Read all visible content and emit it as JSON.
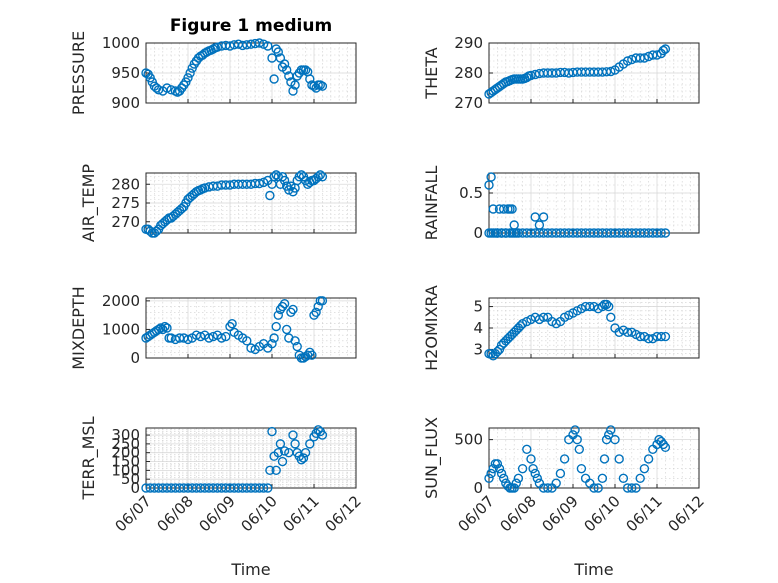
{
  "figure": {
    "title": "Figure 1 medium",
    "xlabel": "Time",
    "xticks": [
      "06/07",
      "06/08",
      "06/09",
      "06/10",
      "06/11",
      "06/12"
    ]
  },
  "colors": {
    "marker": "#0072bd",
    "axis": "#262626",
    "grid": "#d9d9d9"
  },
  "chart_data": [
    {
      "type": "scatter",
      "name": "PRESSURE",
      "ylabel": "PRESSURE",
      "xlim": [
        0,
        5
      ],
      "ylim": [
        900,
        1000
      ],
      "yticks": [
        900,
        950,
        1000
      ],
      "x": [
        0.0,
        0.05,
        0.1,
        0.15,
        0.2,
        0.25,
        0.3,
        0.4,
        0.5,
        0.6,
        0.7,
        0.75,
        0.8,
        0.85,
        0.9,
        0.95,
        1.0,
        1.05,
        1.1,
        1.15,
        1.2,
        1.25,
        1.3,
        1.35,
        1.4,
        1.45,
        1.5,
        1.55,
        1.6,
        1.65,
        1.7,
        1.8,
        1.9,
        2.0,
        2.1,
        2.2,
        2.3,
        2.4,
        2.5,
        2.6,
        2.7,
        2.8,
        2.9,
        3.0,
        3.05,
        3.1,
        3.15,
        3.2,
        3.25,
        3.3,
        3.35,
        3.4,
        3.45,
        3.5,
        3.55,
        3.6,
        3.65,
        3.7,
        3.75,
        3.8,
        3.85,
        3.9,
        3.95,
        4.0,
        4.05,
        4.1,
        4.15,
        4.2
      ],
      "y": [
        950,
        948,
        942,
        935,
        928,
        925,
        922,
        920,
        925,
        922,
        920,
        918,
        920,
        925,
        930,
        935,
        942,
        950,
        958,
        965,
        970,
        975,
        978,
        980,
        983,
        985,
        987,
        988,
        990,
        992,
        993,
        995,
        996,
        995,
        997,
        998,
        996,
        997,
        998,
        999,
        1000,
        998,
        995,
        975,
        940,
        990,
        985,
        975,
        960,
        965,
        955,
        945,
        935,
        920,
        930,
        945,
        950,
        955,
        955,
        955,
        952,
        940,
        930,
        928,
        925,
        930,
        930,
        928
      ]
    },
    {
      "type": "scatter",
      "name": "THETA",
      "ylabel": "THETA",
      "xlim": [
        0,
        5
      ],
      "ylim": [
        270,
        290
      ],
      "yticks": [
        270,
        280,
        290
      ],
      "x": [
        0.0,
        0.05,
        0.1,
        0.15,
        0.2,
        0.25,
        0.3,
        0.35,
        0.4,
        0.45,
        0.5,
        0.55,
        0.6,
        0.65,
        0.7,
        0.75,
        0.8,
        0.85,
        0.9,
        0.95,
        1.0,
        1.1,
        1.2,
        1.3,
        1.4,
        1.5,
        1.6,
        1.7,
        1.8,
        1.9,
        2.0,
        2.1,
        2.2,
        2.3,
        2.4,
        2.5,
        2.6,
        2.7,
        2.8,
        2.9,
        3.0,
        3.1,
        3.2,
        3.3,
        3.4,
        3.5,
        3.6,
        3.7,
        3.8,
        3.9,
        4.0,
        4.1,
        4.15,
        4.2
      ],
      "y": [
        273.0,
        273.5,
        274.0,
        274.5,
        275.0,
        275.5,
        276.0,
        276.5,
        277.0,
        277.2,
        277.5,
        277.8,
        278.0,
        278.0,
        278.0,
        278.0,
        278.0,
        278.2,
        278.5,
        279.0,
        279.2,
        279.5,
        279.8,
        280.0,
        280.0,
        280.0,
        280.0,
        280.2,
        280.2,
        280.0,
        280.2,
        280.3,
        280.3,
        280.3,
        280.3,
        280.3,
        280.3,
        280.3,
        280.4,
        280.5,
        281.0,
        282.0,
        283.0,
        284.0,
        284.5,
        285.0,
        285.0,
        285.0,
        285.5,
        286.0,
        286.0,
        286.5,
        287.5,
        288.0
      ]
    },
    {
      "type": "scatter",
      "name": "AIR_TEMP",
      "ylabel": "AIR_TEMP",
      "xlim": [
        0,
        5
      ],
      "ylim": [
        267,
        283
      ],
      "yticks": [
        270,
        275,
        280
      ],
      "x": [
        0.0,
        0.05,
        0.1,
        0.15,
        0.2,
        0.25,
        0.3,
        0.35,
        0.4,
        0.45,
        0.5,
        0.55,
        0.6,
        0.65,
        0.7,
        0.75,
        0.8,
        0.85,
        0.9,
        0.95,
        1.0,
        1.05,
        1.1,
        1.15,
        1.2,
        1.25,
        1.3,
        1.35,
        1.4,
        1.5,
        1.6,
        1.7,
        1.8,
        1.9,
        2.0,
        2.1,
        2.2,
        2.3,
        2.4,
        2.5,
        2.6,
        2.7,
        2.8,
        2.9,
        2.95,
        3.0,
        3.05,
        3.1,
        3.15,
        3.2,
        3.25,
        3.3,
        3.35,
        3.4,
        3.45,
        3.5,
        3.55,
        3.6,
        3.65,
        3.7,
        3.75,
        3.8,
        3.85,
        3.9,
        3.95,
        4.0,
        4.05,
        4.1,
        4.15,
        4.2
      ],
      "y": [
        268.0,
        268.0,
        267.5,
        267.0,
        267.0,
        267.5,
        268.0,
        269.0,
        269.5,
        270.0,
        270.5,
        271.0,
        271.0,
        271.5,
        272.0,
        272.5,
        273.0,
        273.5,
        274.0,
        275.0,
        276.0,
        276.5,
        277.0,
        277.5,
        278.0,
        278.3,
        278.5,
        278.8,
        279.0,
        279.3,
        279.5,
        279.5,
        279.8,
        279.8,
        279.8,
        280.0,
        280.0,
        280.0,
        280.0,
        280.0,
        280.2,
        280.2,
        280.5,
        281.0,
        277.0,
        280.0,
        282.0,
        282.5,
        282.0,
        280.0,
        282.0,
        281.0,
        279.5,
        278.5,
        279.5,
        278.0,
        279.0,
        281.0,
        282.0,
        282.5,
        282.0,
        281.0,
        280.0,
        280.5,
        281.0,
        281.0,
        281.5,
        282.0,
        282.5,
        282.0
      ]
    },
    {
      "type": "scatter",
      "name": "RAINFALL",
      "ylabel": "RAINFALL",
      "xlim": [
        0,
        5
      ],
      "ylim": [
        0,
        0.75
      ],
      "yticks": [
        0,
        0.5
      ],
      "x": [
        0.0,
        0.05,
        0.1,
        0.15,
        0.2,
        0.25,
        0.3,
        0.35,
        0.4,
        0.45,
        0.5,
        0.55,
        0.6,
        0.65,
        0.7,
        0.8,
        0.9,
        1.0,
        1.1,
        1.2,
        1.3,
        1.4,
        1.5,
        1.6,
        1.7,
        1.8,
        1.9,
        2.0,
        2.1,
        2.2,
        2.3,
        2.4,
        2.5,
        2.6,
        2.7,
        2.8,
        2.9,
        3.0,
        3.1,
        3.2,
        3.3,
        3.4,
        3.5,
        3.6,
        3.7,
        3.8,
        3.9,
        4.0,
        4.1,
        4.2,
        0.0,
        0.05,
        0.1,
        0.2,
        0.3,
        0.4,
        0.5,
        0.55,
        0.6,
        1.1,
        1.2,
        1.3
      ],
      "y": [
        0.6,
        0.7,
        0.3,
        0.0,
        0.0,
        0.3,
        0.0,
        0.3,
        0.0,
        0.3,
        0.3,
        0.3,
        0.1,
        0.0,
        0.0,
        0.0,
        0.0,
        0.0,
        0.0,
        0.0,
        0.0,
        0.0,
        0.0,
        0.0,
        0.0,
        0.0,
        0.0,
        0.0,
        0.0,
        0.0,
        0.0,
        0.0,
        0.0,
        0.0,
        0.0,
        0.0,
        0.0,
        0.0,
        0.0,
        0.0,
        0.0,
        0.0,
        0.0,
        0.0,
        0.0,
        0.0,
        0.0,
        0.0,
        0.0,
        0.0,
        0.0,
        0.0,
        0.0,
        0.0,
        0.0,
        0.0,
        0.0,
        0.0,
        0.0,
        0.2,
        0.1,
        0.2
      ]
    },
    {
      "type": "scatter",
      "name": "MIXDEPTH",
      "ylabel": "MIXDEPTH",
      "xlim": [
        0,
        5
      ],
      "ylim": [
        0,
        2100
      ],
      "yticks": [
        0,
        1000,
        2000
      ],
      "x": [
        0.0,
        0.05,
        0.1,
        0.15,
        0.2,
        0.25,
        0.3,
        0.35,
        0.4,
        0.45,
        0.5,
        0.55,
        0.6,
        0.7,
        0.8,
        0.9,
        1.0,
        1.1,
        1.2,
        1.3,
        1.4,
        1.5,
        1.6,
        1.7,
        1.8,
        1.9,
        2.0,
        2.05,
        2.1,
        2.2,
        2.3,
        2.4,
        2.5,
        2.6,
        2.7,
        2.8,
        2.9,
        3.0,
        3.05,
        3.1,
        3.15,
        3.2,
        3.25,
        3.3,
        3.35,
        3.4,
        3.45,
        3.5,
        3.55,
        3.6,
        3.65,
        3.7,
        3.75,
        3.8,
        3.85,
        3.9,
        3.95,
        4.0,
        4.05,
        4.1,
        4.15,
        4.2
      ],
      "y": [
        700,
        750,
        800,
        850,
        900,
        950,
        1000,
        1050,
        1000,
        1100,
        1050,
        700,
        700,
        650,
        700,
        700,
        650,
        700,
        800,
        750,
        800,
        700,
        750,
        800,
        700,
        750,
        1100,
        1200,
        900,
        800,
        700,
        600,
        350,
        300,
        400,
        500,
        350,
        500,
        700,
        1100,
        1500,
        1700,
        1800,
        1900,
        1000,
        700,
        1600,
        1700,
        600,
        400,
        100,
        0,
        0,
        50,
        100,
        200,
        100,
        1500,
        1600,
        1800,
        2000,
        2000
      ]
    },
    {
      "type": "scatter",
      "name": "H2OMIXRA",
      "ylabel": "H2OMIXRA",
      "xlim": [
        0,
        5
      ],
      "ylim": [
        2.6,
        5.4
      ],
      "yticks": [
        3,
        4,
        5
      ],
      "x": [
        0.0,
        0.05,
        0.1,
        0.15,
        0.2,
        0.25,
        0.3,
        0.35,
        0.4,
        0.45,
        0.5,
        0.55,
        0.6,
        0.65,
        0.7,
        0.75,
        0.8,
        0.9,
        1.0,
        1.1,
        1.2,
        1.3,
        1.4,
        1.5,
        1.6,
        1.7,
        1.8,
        1.9,
        2.0,
        2.1,
        2.2,
        2.3,
        2.4,
        2.5,
        2.6,
        2.7,
        2.75,
        2.8,
        2.85,
        2.9,
        3.0,
        3.1,
        3.2,
        3.3,
        3.4,
        3.5,
        3.6,
        3.7,
        3.8,
        3.9,
        4.0,
        4.1,
        4.2
      ],
      "y": [
        2.8,
        2.8,
        2.7,
        2.8,
        2.9,
        3.0,
        3.2,
        3.3,
        3.4,
        3.5,
        3.6,
        3.7,
        3.8,
        3.9,
        4.0,
        4.1,
        4.2,
        4.3,
        4.4,
        4.5,
        4.4,
        4.5,
        4.5,
        4.3,
        4.2,
        4.3,
        4.5,
        4.6,
        4.7,
        4.8,
        4.9,
        5.0,
        5.0,
        5.0,
        4.9,
        5.0,
        5.1,
        5.1,
        5.0,
        4.5,
        4.0,
        3.8,
        3.9,
        3.8,
        3.8,
        3.7,
        3.6,
        3.6,
        3.5,
        3.5,
        3.6,
        3.6,
        3.6
      ]
    },
    {
      "type": "scatter",
      "name": "TERR_MSL",
      "ylabel": "TERR_MSL",
      "xlim": [
        0,
        5
      ],
      "ylim": [
        0,
        340
      ],
      "yticks": [
        0,
        50,
        100,
        150,
        200,
        250,
        300
      ],
      "x": [
        0.0,
        0.1,
        0.2,
        0.3,
        0.4,
        0.5,
        0.6,
        0.7,
        0.8,
        0.9,
        1.0,
        1.1,
        1.2,
        1.3,
        1.4,
        1.5,
        1.6,
        1.7,
        1.8,
        1.9,
        2.0,
        2.1,
        2.2,
        2.3,
        2.4,
        2.5,
        2.6,
        2.7,
        2.8,
        2.9,
        2.95,
        3.0,
        3.05,
        3.1,
        3.15,
        3.2,
        3.25,
        3.3,
        3.4,
        3.5,
        3.55,
        3.6,
        3.65,
        3.7,
        3.75,
        3.8,
        3.9,
        4.0,
        4.05,
        4.1,
        4.15,
        4.2
      ],
      "y": [
        0,
        0,
        0,
        0,
        0,
        0,
        0,
        0,
        0,
        0,
        0,
        0,
        0,
        0,
        0,
        0,
        0,
        0,
        0,
        0,
        0,
        0,
        0,
        0,
        0,
        0,
        0,
        0,
        0,
        0,
        100,
        320,
        180,
        100,
        200,
        250,
        150,
        210,
        200,
        300,
        250,
        200,
        180,
        160,
        170,
        200,
        250,
        290,
        310,
        330,
        320,
        300
      ]
    },
    {
      "type": "scatter",
      "name": "SUN_FLUX",
      "ylabel": "SUN_FLUX",
      "xlim": [
        0,
        5
      ],
      "ylim": [
        0,
        620
      ],
      "yticks": [
        0,
        500
      ],
      "x": [
        0.0,
        0.05,
        0.1,
        0.15,
        0.2,
        0.25,
        0.3,
        0.35,
        0.4,
        0.45,
        0.5,
        0.55,
        0.6,
        0.65,
        0.7,
        0.8,
        0.9,
        1.0,
        1.05,
        1.1,
        1.15,
        1.2,
        1.3,
        1.4,
        1.5,
        1.6,
        1.7,
        1.8,
        1.9,
        2.0,
        2.05,
        2.1,
        2.15,
        2.2,
        2.3,
        2.4,
        2.5,
        2.6,
        2.7,
        2.75,
        2.8,
        2.85,
        2.9,
        3.0,
        3.1,
        3.2,
        3.3,
        3.4,
        3.5,
        3.6,
        3.7,
        3.8,
        3.9,
        4.0,
        4.05,
        4.1,
        4.15,
        4.2
      ],
      "y": [
        100,
        150,
        200,
        250,
        250,
        200,
        150,
        100,
        50,
        20,
        0,
        0,
        0,
        50,
        100,
        200,
        400,
        300,
        200,
        150,
        100,
        50,
        0,
        0,
        0,
        50,
        150,
        300,
        500,
        550,
        600,
        500,
        400,
        200,
        100,
        50,
        0,
        0,
        100,
        300,
        500,
        550,
        600,
        500,
        300,
        100,
        0,
        0,
        0,
        100,
        200,
        300,
        400,
        450,
        500,
        480,
        450,
        420
      ]
    }
  ]
}
